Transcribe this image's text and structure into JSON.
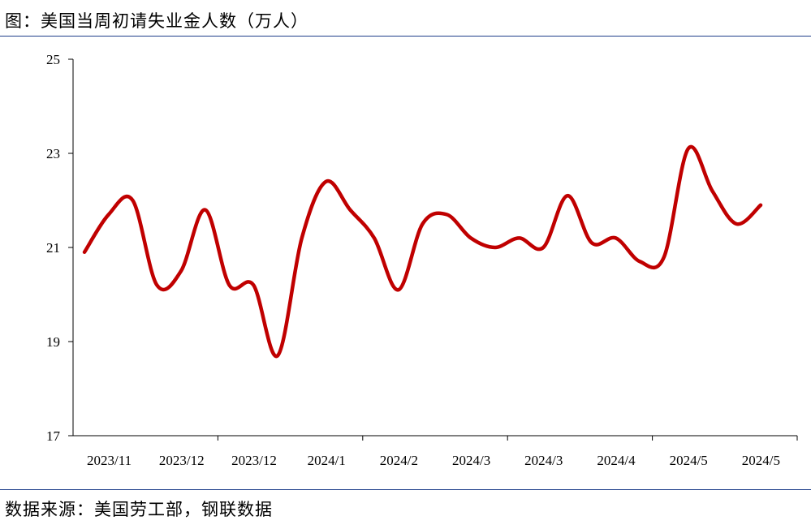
{
  "header": {
    "title": "图：美国当周初请失业金人数（万人）"
  },
  "footer": {
    "source": "数据来源：美国劳工部，钢联数据"
  },
  "colors": {
    "line": "#c00000",
    "rule": "#1f3f8a",
    "axis": "#000000"
  },
  "chart_data": {
    "type": "line",
    "title": "",
    "xlabel": "",
    "ylabel": "",
    "ylim": [
      17,
      25
    ],
    "yticks": [
      17,
      19,
      21,
      23,
      25
    ],
    "xtick_labels": [
      "2023/11",
      "2023/12",
      "2023/12",
      "2024/1",
      "2024/2",
      "2024/3",
      "2024/3",
      "2024/4",
      "2024/5",
      "2024/5"
    ],
    "grid": false,
    "legend": "none",
    "series": [
      {
        "values": [
          20.9,
          21.7,
          22.0,
          20.2,
          20.5,
          21.8,
          20.2,
          20.2,
          18.7,
          21.2,
          22.4,
          21.8,
          21.2,
          20.1,
          21.5,
          21.7,
          21.2,
          21.0,
          21.2,
          21.0,
          22.1,
          21.1,
          21.2,
          20.7,
          20.8,
          23.1,
          22.2,
          21.5,
          21.9
        ]
      }
    ]
  }
}
